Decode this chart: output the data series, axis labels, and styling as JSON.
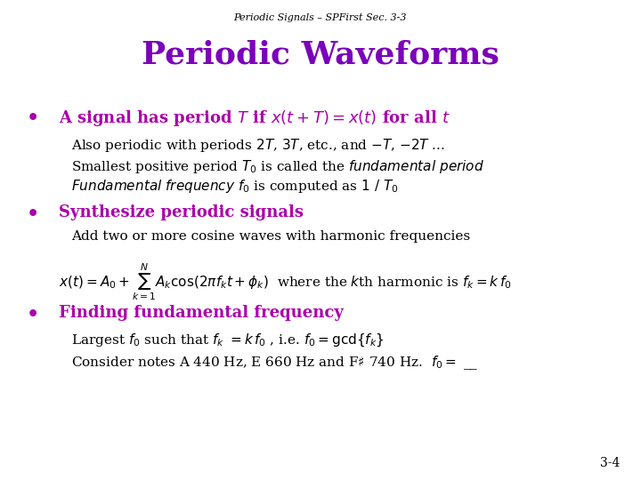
{
  "title_top": "Periodic Signals – SPFirst Sec. 3-3",
  "title_main": "Periodic Waveforms",
  "background_color": "#ffffff",
  "title_top_color": "#000000",
  "title_main_color": "#7B00BB",
  "bullet_color": "#AA00AA",
  "black_color": "#000000",
  "slide_number": "3-4",
  "bullet1_head": "A signal has period  T  if x(t + T) = x(t) for all t",
  "bullet1_sub1": "Also periodic with periods 2T, 3T, etc., and –T, –2T ...",
  "bullet1_sub2": "Smallest positive period T₀ is called the fundamental period",
  "bullet1_sub3": "Fundamental frequency f₀ is computed as 1 / T₀",
  "bullet2_head": "Synthesize periodic signals",
  "bullet2_sub1": "Add two or more cosine waves with harmonic frequencies",
  "bullet3_head": "Finding fundamental frequency",
  "bullet3_sub1": "Largest f₀ such that fₖ = kf₀ , i.e. f₀ = gcd{fₖ }",
  "bullet3_sub2": "Consider notes A 440 Hz, E 660 Hz and F♯ 740 Hz.  f₀ = __"
}
